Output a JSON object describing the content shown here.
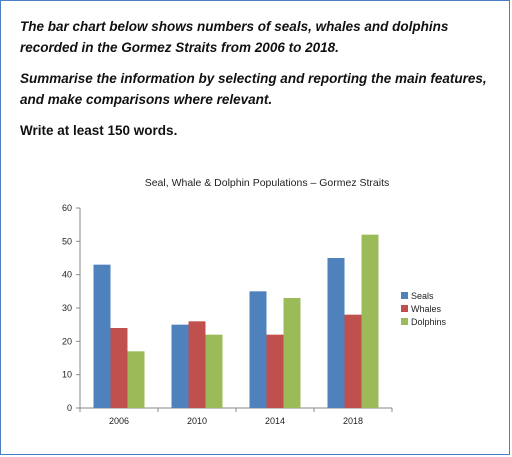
{
  "task": {
    "line1": "The bar chart below shows numbers of seals, whales and dolphins recorded in the Gormez Straits from 2006 to 2018.",
    "line2": "Summarise the information by selecting and reporting the main features, and make comparisons where relevant.",
    "line3": "Write at least 150 words."
  },
  "chart_data": {
    "type": "bar",
    "title": "Seal, Whale & Dolphin Populations – Gormez Straits",
    "categories": [
      "2006",
      "2010",
      "2014",
      "2018"
    ],
    "series": [
      {
        "name": "Seals",
        "color": "#4f81bd",
        "values": [
          43,
          25,
          35,
          45
        ]
      },
      {
        "name": "Whales",
        "color": "#c0504d",
        "values": [
          24,
          26,
          22,
          28
        ]
      },
      {
        "name": "Dolphins",
        "color": "#9bbb59",
        "values": [
          17,
          22,
          33,
          52
        ]
      }
    ],
    "ylim": [
      0,
      60
    ],
    "yticks": [
      0,
      10,
      20,
      30,
      40,
      50,
      60
    ],
    "grid": false,
    "legend": "right"
  }
}
